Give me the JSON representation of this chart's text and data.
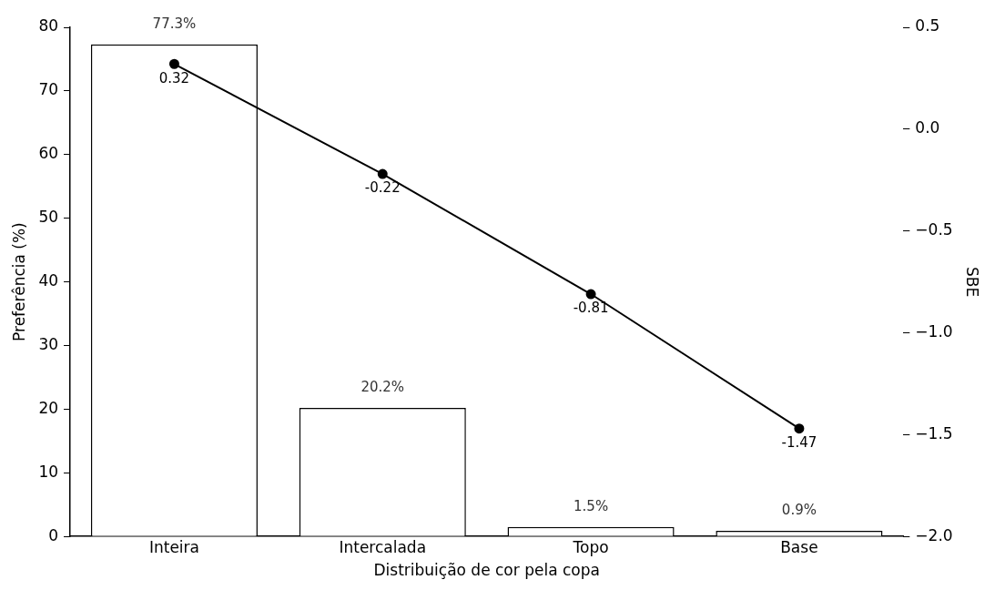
{
  "chart_data": {
    "type": "bar",
    "xlabel": "Distribuição de cor pela copa",
    "ylabel": "Preferência (%)",
    "y2label": "SBE",
    "categories": [
      "Inteira",
      "Intercalada",
      "Topo",
      "Base"
    ],
    "series": [
      {
        "color": "#ffffff",
        "values": [
          77.3,
          20.2,
          1.5,
          0.9
        ],
        "value_labels": [
          "77.3%",
          "20.2%",
          "1.5%",
          "0.9%"
        ]
      },
      {
        "type": "line",
        "axis": "y2",
        "color": "#000000",
        "values": [
          0.32,
          -0.22,
          -0.81,
          -1.47
        ],
        "value_labels": [
          "0.32",
          "-0.22",
          "-0.81",
          "-1.47"
        ]
      }
    ],
    "ylim": [
      0,
      80
    ],
    "yticks": [
      0,
      10,
      20,
      30,
      40,
      50,
      60,
      70,
      80
    ],
    "y2lim": [
      -2,
      0.5
    ],
    "y2ticks": [
      {
        "value": -2,
        "label": "−2.0"
      },
      {
        "value": -1.5,
        "label": "−1.5"
      },
      {
        "value": -1,
        "label": "−1.0"
      },
      {
        "value": -0.5,
        "label": "−0.5"
      },
      {
        "value": 0,
        "label": "0.0"
      },
      {
        "value": 0.5,
        "label": "0.5"
      }
    ],
    "marker": "circle",
    "line_style": "solid",
    "grid": false,
    "legend": false
  }
}
